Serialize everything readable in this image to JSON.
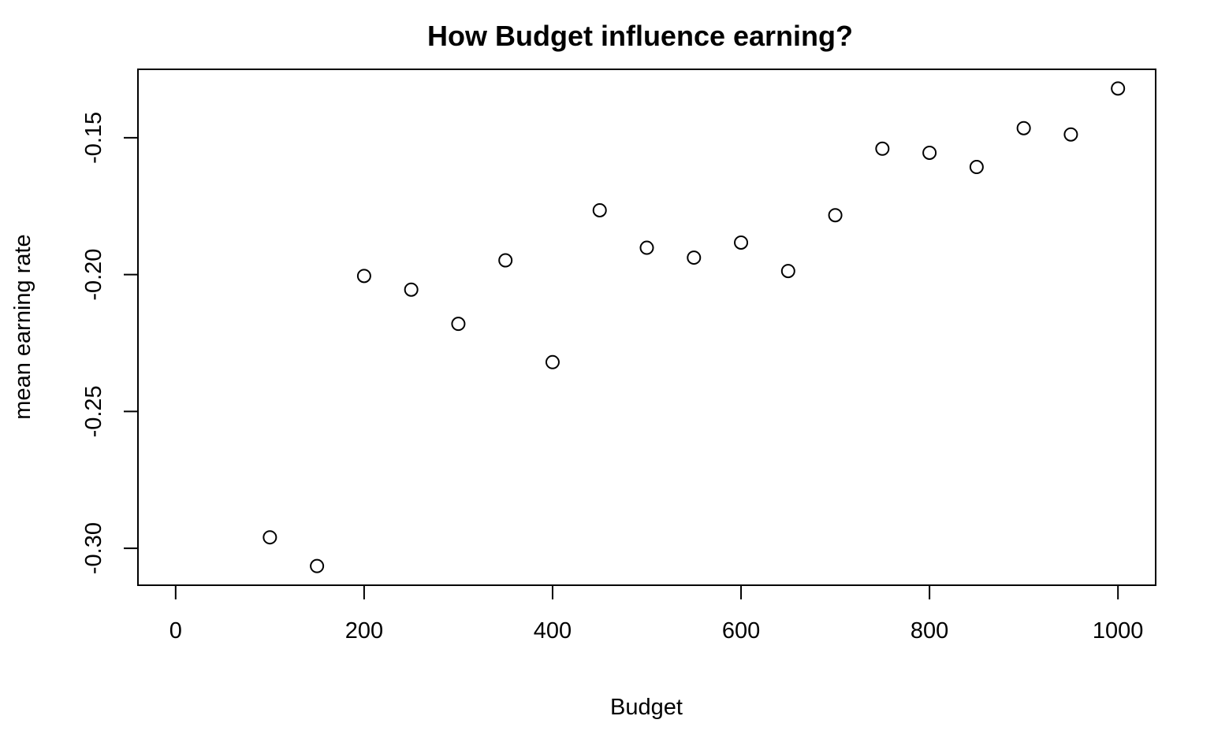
{
  "chart_data": {
    "type": "scatter",
    "title": "How Budget influence earning?",
    "xlabel": "Budget",
    "ylabel": "mean earning rate",
    "xlim": [
      -40,
      1040
    ],
    "ylim": [
      -0.3135,
      -0.125
    ],
    "x_ticks": [
      0,
      200,
      400,
      600,
      800,
      1000
    ],
    "x_tick_labels": [
      "0",
      "200",
      "400",
      "600",
      "800",
      "1000"
    ],
    "y_ticks": [
      -0.3,
      -0.25,
      -0.2,
      -0.15
    ],
    "y_tick_labels": [
      "-0.30",
      "-0.25",
      "-0.20",
      "-0.15"
    ],
    "grid": false,
    "marker": "open-circle",
    "marker_color": "#000000",
    "points": [
      {
        "x": 100,
        "y": -0.296
      },
      {
        "x": 150,
        "y": -0.3065
      },
      {
        "x": 200,
        "y": -0.2005
      },
      {
        "x": 250,
        "y": -0.2055
      },
      {
        "x": 300,
        "y": -0.218
      },
      {
        "x": 350,
        "y": -0.1948
      },
      {
        "x": 400,
        "y": -0.232
      },
      {
        "x": 450,
        "y": -0.1765
      },
      {
        "x": 500,
        "y": -0.1902
      },
      {
        "x": 550,
        "y": -0.1938
      },
      {
        "x": 600,
        "y": -0.1883
      },
      {
        "x": 650,
        "y": -0.1987
      },
      {
        "x": 700,
        "y": -0.1783
      },
      {
        "x": 750,
        "y": -0.154
      },
      {
        "x": 800,
        "y": -0.1555
      },
      {
        "x": 850,
        "y": -0.1607
      },
      {
        "x": 900,
        "y": -0.1465
      },
      {
        "x": 950,
        "y": -0.1488
      },
      {
        "x": 1000,
        "y": -0.132
      }
    ]
  }
}
